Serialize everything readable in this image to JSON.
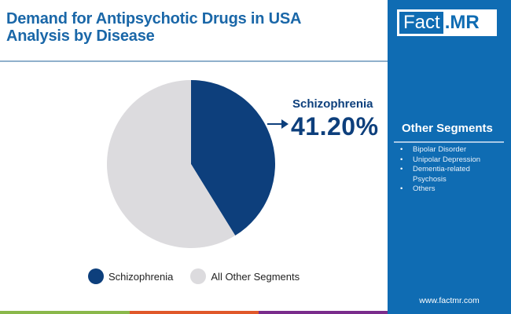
{
  "header": {
    "title_line1": "Demand for Antipsychotic Drugs in USA",
    "title_line2": "Analysis by Disease"
  },
  "callout": {
    "label": "Schizophrenia",
    "value": "41.20%",
    "color": "#0d3f7c"
  },
  "legend": {
    "items": [
      {
        "label": "Schizophrenia",
        "color": "#0d3f7c"
      },
      {
        "label": "All Other Segments",
        "color": "#dcdbde"
      }
    ]
  },
  "bottom_bar": {
    "colors": [
      "#8ab84a",
      "#e0582a",
      "#7a2c8c"
    ]
  },
  "sidebar": {
    "logo_fact": "Fact",
    "logo_mr": ".MR",
    "segments_title": "Other Segments",
    "segments": [
      "Bipolar Disorder",
      "Unipolar Depression",
      "Dementia-related Psychosis",
      "Others"
    ],
    "website": "www.factmr.com",
    "background": "#0f6cb3"
  },
  "chart_data": {
    "type": "pie",
    "title": "Demand for Antipsychotic Drugs in USA Analysis by Disease",
    "categories": [
      "Schizophrenia",
      "All Other Segments"
    ],
    "values": [
      41.2,
      58.8
    ],
    "colors": [
      "#0d3f7c",
      "#dcdbde"
    ],
    "annotations": [
      {
        "label": "Schizophrenia",
        "value": "41.20%"
      }
    ],
    "legend_position": "bottom",
    "start_angle": "12 o'clock, clockwise"
  }
}
